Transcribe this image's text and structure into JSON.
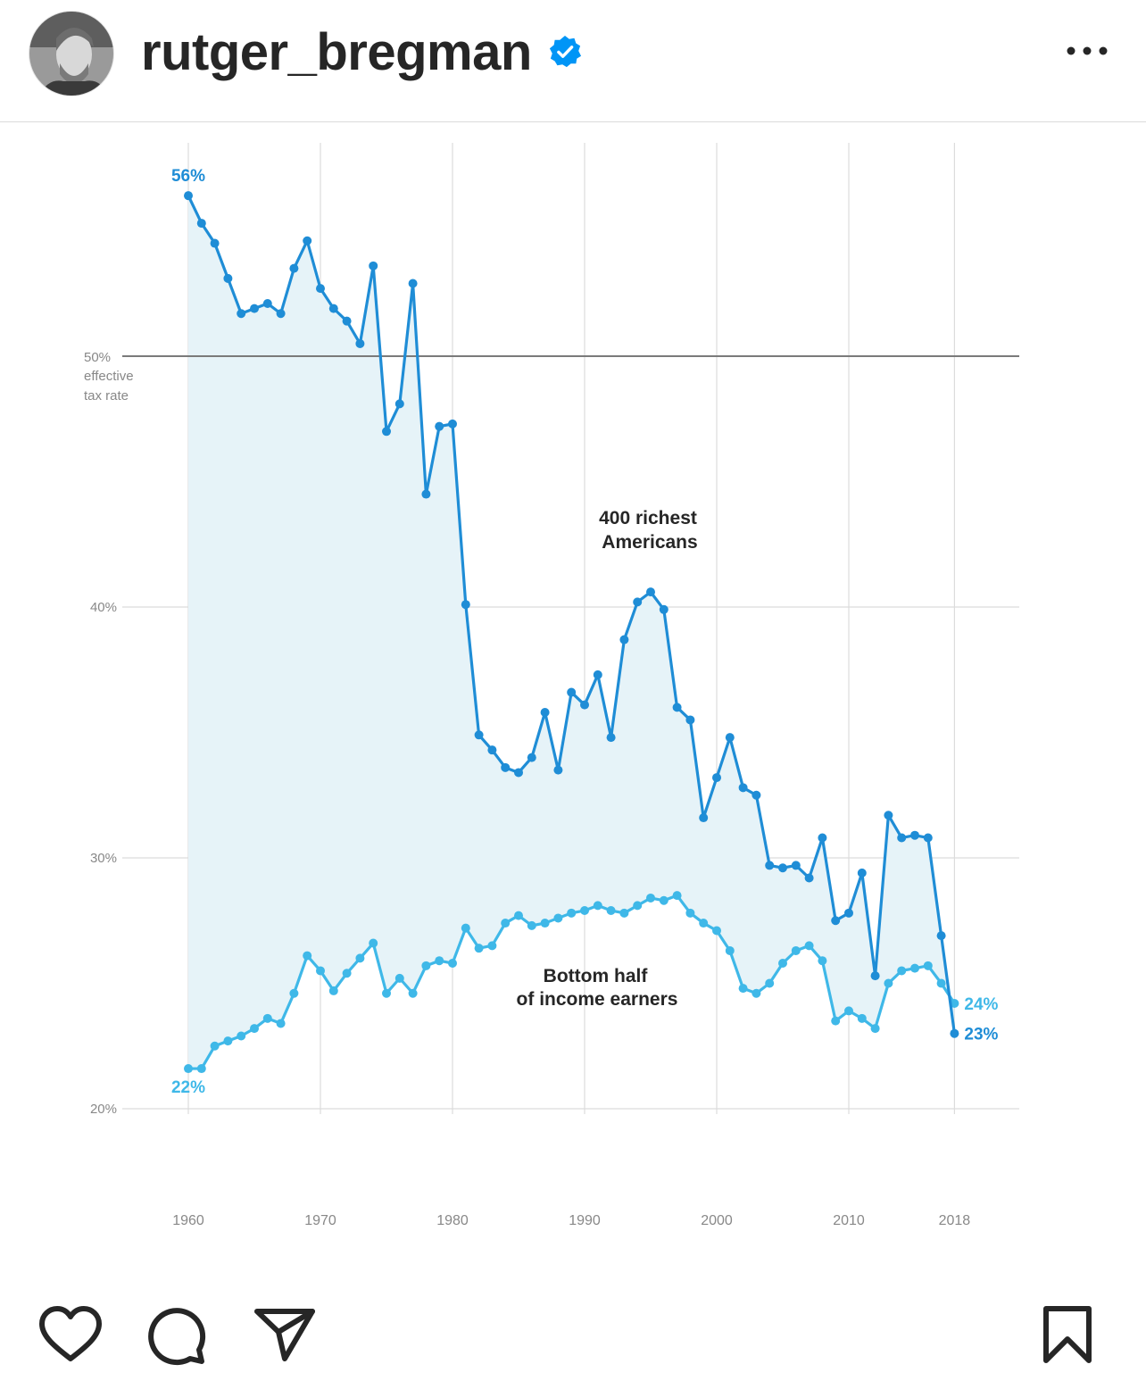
{
  "post": {
    "username": "rutger_bregman",
    "verified": true,
    "avatar_icon": "profile-photo-icon",
    "more_icon": "more-options-icon"
  },
  "actions": {
    "like_icon": "heart-icon",
    "comment_icon": "comment-icon",
    "share_icon": "send-icon",
    "save_icon": "bookmark-icon"
  },
  "colors": {
    "rich_line": "#1f8dd6",
    "bottom_line": "#3fb8e8",
    "fill": "#e6f3f8",
    "verified": "#0095f6"
  },
  "chart_data": {
    "type": "line",
    "title": "",
    "xlabel": "",
    "ylabel": "",
    "y_axis_note": "effective tax rate",
    "xlim": [
      1960,
      2018
    ],
    "ylim": [
      20,
      56
    ],
    "x_ticks": [
      "1960",
      "1970",
      "1980",
      "1990",
      "2000",
      "2010",
      "2018"
    ],
    "y_ticks": [
      {
        "value": 20,
        "label": "20%"
      },
      {
        "value": 30,
        "label": "30%"
      },
      {
        "value": 40,
        "label": "40%"
      },
      {
        "value": 50,
        "label": "50%"
      }
    ],
    "reference_line": 50,
    "series": [
      {
        "name": "400 richest Americans",
        "label": "400 richest Americans",
        "label_lines": [
          "400 richest",
          "Americans"
        ],
        "start_label": "56%",
        "end_label": "23%",
        "x": [
          1960,
          1961,
          1962,
          1963,
          1964,
          1965,
          1966,
          1967,
          1968,
          1969,
          1970,
          1971,
          1972,
          1973,
          1974,
          1975,
          1976,
          1977,
          1978,
          1979,
          1980,
          1981,
          1982,
          1983,
          1984,
          1985,
          1986,
          1987,
          1988,
          1989,
          1990,
          1991,
          1992,
          1993,
          1994,
          1995,
          1996,
          1997,
          1998,
          1999,
          2000,
          2001,
          2002,
          2003,
          2004,
          2005,
          2006,
          2007,
          2008,
          2009,
          2010,
          2011,
          2012,
          2013,
          2014,
          2015,
          2016,
          2017,
          2018
        ],
        "values": [
          56.4,
          55.3,
          54.5,
          53.1,
          51.7,
          51.9,
          52.1,
          51.7,
          53.5,
          54.6,
          52.7,
          51.9,
          51.4,
          50.5,
          53.6,
          47.0,
          48.1,
          52.9,
          44.5,
          47.2,
          47.3,
          40.1,
          34.9,
          34.3,
          33.6,
          33.4,
          34.0,
          35.8,
          33.5,
          36.6,
          36.1,
          37.3,
          34.8,
          38.7,
          40.2,
          40.6,
          39.9,
          36.0,
          35.5,
          31.6,
          33.2,
          34.8,
          32.8,
          32.5,
          29.7,
          29.6,
          29.7,
          29.2,
          30.8,
          27.5,
          27.8,
          29.4,
          25.3,
          31.7,
          30.8,
          30.9,
          30.8,
          26.9,
          23.0
        ]
      },
      {
        "name": "Bottom half of income earners",
        "label": "Bottom half of income earners",
        "label_lines": [
          "Bottom half",
          "of income earners"
        ],
        "start_label": "22%",
        "end_label": "24%",
        "x": [
          1960,
          1961,
          1962,
          1963,
          1964,
          1965,
          1966,
          1967,
          1968,
          1969,
          1970,
          1971,
          1972,
          1973,
          1974,
          1975,
          1976,
          1977,
          1978,
          1979,
          1980,
          1981,
          1982,
          1983,
          1984,
          1985,
          1986,
          1987,
          1988,
          1989,
          1990,
          1991,
          1992,
          1993,
          1994,
          1995,
          1996,
          1997,
          1998,
          1999,
          2000,
          2001,
          2002,
          2003,
          2004,
          2005,
          2006,
          2007,
          2008,
          2009,
          2010,
          2011,
          2012,
          2013,
          2014,
          2015,
          2016,
          2017,
          2018
        ],
        "values": [
          21.6,
          21.6,
          22.5,
          22.7,
          22.9,
          23.2,
          23.6,
          23.4,
          24.6,
          26.1,
          25.5,
          24.7,
          25.4,
          26.0,
          26.6,
          24.6,
          25.2,
          24.6,
          25.7,
          25.9,
          25.8,
          27.2,
          26.4,
          26.5,
          27.4,
          27.7,
          27.3,
          27.4,
          27.6,
          27.8,
          27.9,
          28.1,
          27.9,
          27.8,
          28.1,
          28.4,
          28.3,
          28.5,
          27.8,
          27.4,
          27.1,
          26.3,
          24.8,
          24.6,
          25.0,
          25.8,
          26.3,
          26.5,
          25.9,
          23.5,
          23.9,
          23.6,
          23.2,
          25.0,
          25.5,
          25.6,
          25.7,
          25.0,
          24.2
        ]
      }
    ],
    "grid": true,
    "legend": "inline labels"
  }
}
